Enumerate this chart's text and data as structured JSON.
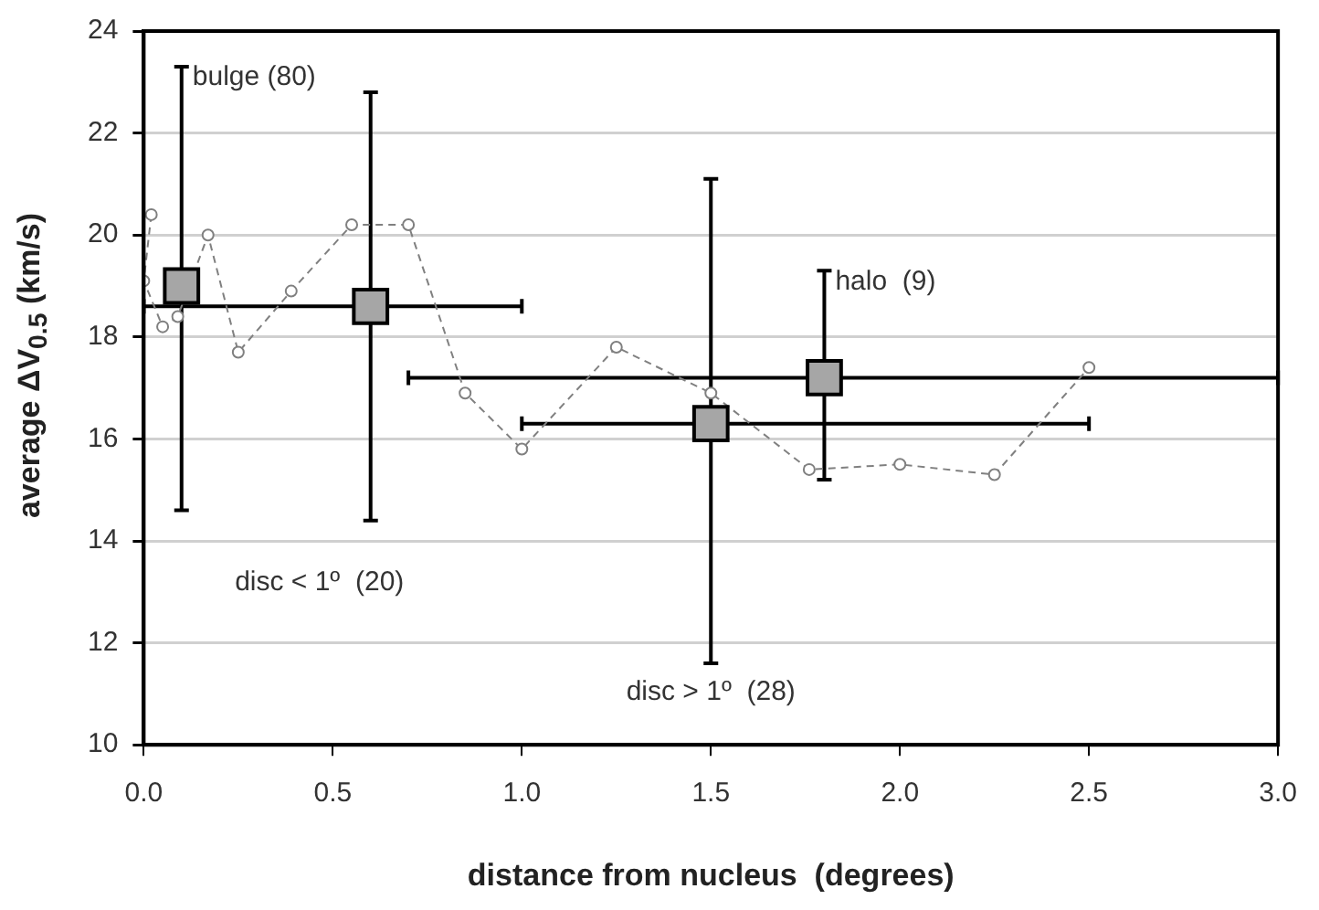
{
  "chart_data": {
    "type": "scatter",
    "xlabel": "distance from nucleus  (degrees)",
    "ylabel": "average ΔV$_{0.5}$  (km/s)",
    "xlim": [
      0,
      3
    ],
    "xticks": [
      {
        "value": 0,
        "label": "0.0"
      },
      {
        "value": 0.5,
        "label": "0.5"
      },
      {
        "value": 1,
        "label": "1.0"
      },
      {
        "value": 1.5,
        "label": "1.5"
      },
      {
        "value": 2,
        "label": "2.0"
      },
      {
        "value": 2.5,
        "label": "2.5"
      },
      {
        "value": 3,
        "label": "3.0"
      }
    ],
    "ylim": [
      10,
      24
    ],
    "yticks": [
      10,
      12,
      14,
      16,
      18,
      20,
      22,
      24
    ],
    "grid": "y",
    "legend": false,
    "series": [
      {
        "type": "line",
        "color": "#808080",
        "marker": "circle",
        "line_style": "dashed",
        "x": [
          0.02,
          0.0,
          0.05,
          0.09,
          0.17,
          0.25,
          0.39,
          0.55,
          0.7,
          0.85,
          1.0,
          1.25,
          1.5,
          1.76,
          2.0,
          2.25,
          2.5
        ],
        "values": [
          20.4,
          19.1,
          18.2,
          18.4,
          20.0,
          17.7,
          18.9,
          20.2,
          20.2,
          16.9,
          15.8,
          17.8,
          16.9,
          15.4,
          15.5,
          15.3,
          17.4
        ]
      },
      {
        "type": "scatter",
        "color": "#a6a6a6",
        "marker": "square",
        "x": [
          0.1,
          0.6,
          1.5,
          1.8
        ],
        "values": [
          19.0,
          18.6,
          16.3,
          17.2
        ],
        "errors": [
          [
            14.6,
            23.3
          ],
          [
            14.4,
            22.8
          ],
          [
            11.6,
            21.1
          ],
          [
            15.2,
            19.3
          ]
        ],
        "xerrors": [
          null,
          [
            0,
            1.0
          ],
          [
            1.0,
            2.5
          ],
          [
            0.7,
            3.0
          ]
        ]
      }
    ],
    "annotations": [
      "bulge (80)",
      "disc < 1º  (20)",
      "disc > 1º  (28)",
      "halo  (9)"
    ]
  }
}
